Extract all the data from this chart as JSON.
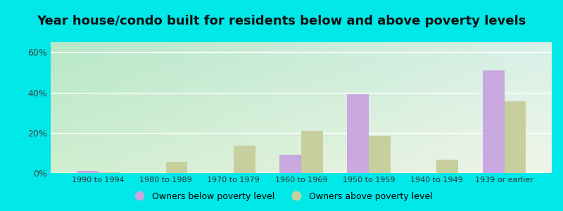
{
  "title": "Year house/condo built for residents below and above poverty levels",
  "categories": [
    "1990 to 1994",
    "1980 to 1989",
    "1970 to 1979",
    "1960 to 1969",
    "1950 to 1959",
    "1940 to 1949",
    "1939 or earlier"
  ],
  "below_poverty": [
    1.0,
    0.0,
    0.0,
    9.0,
    39.0,
    0.0,
    51.0
  ],
  "above_poverty": [
    0.5,
    5.5,
    13.5,
    21.0,
    18.5,
    6.5,
    35.5
  ],
  "below_color": "#c9a8e0",
  "above_color": "#c8cf9e",
  "ylim": [
    0,
    65
  ],
  "yticks": [
    0,
    20,
    40,
    60
  ],
  "ytick_labels": [
    "0%",
    "20%",
    "40%",
    "60%"
  ],
  "title_fontsize": 13,
  "legend_below_label": "Owners below poverty level",
  "legend_above_label": "Owners above poverty level",
  "outer_bg": "#00e8e8",
  "grad_top_left": "#b8e8c8",
  "grad_bottom_right": "#f0f5e8"
}
